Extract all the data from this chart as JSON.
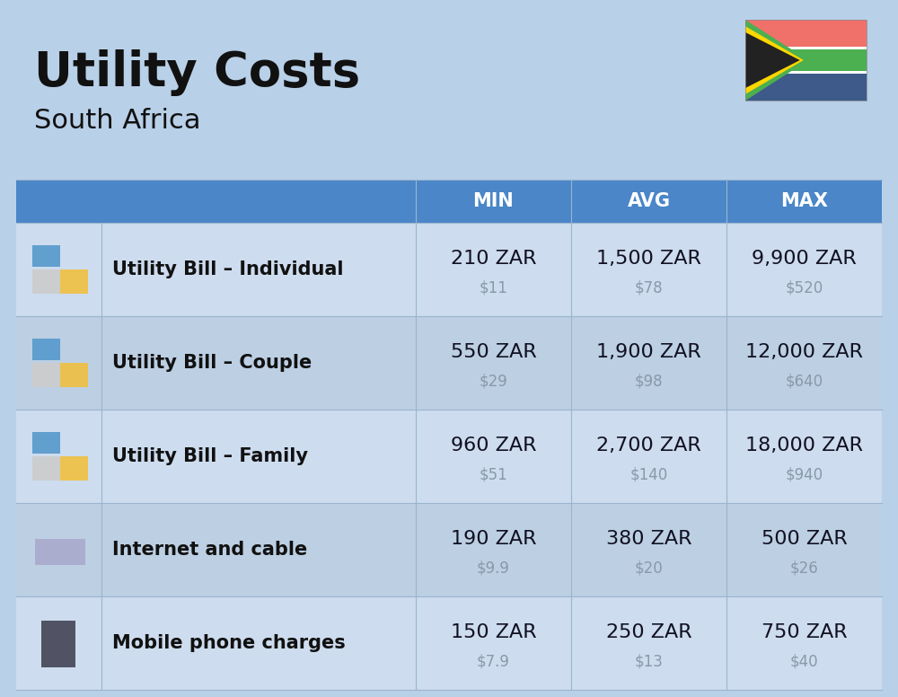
{
  "title": "Utility Costs",
  "subtitle": "South Africa",
  "background_color": "#b8d0e8",
  "header_bg_color": "#4a86c8",
  "row_bg_color_1": "#cddcee",
  "row_bg_color_2": "#bccfe3",
  "col_header_labels": [
    "MIN",
    "AVG",
    "MAX"
  ],
  "rows": [
    {
      "label": "Utility Bill – Individual",
      "min_zar": "210 ZAR",
      "min_usd": "$11",
      "avg_zar": "1,500 ZAR",
      "avg_usd": "$78",
      "max_zar": "9,900 ZAR",
      "max_usd": "$520"
    },
    {
      "label": "Utility Bill – Couple",
      "min_zar": "550 ZAR",
      "min_usd": "$29",
      "avg_zar": "1,900 ZAR",
      "avg_usd": "$98",
      "max_zar": "12,000 ZAR",
      "max_usd": "$640"
    },
    {
      "label": "Utility Bill – Family",
      "min_zar": "960 ZAR",
      "min_usd": "$51",
      "avg_zar": "2,700 ZAR",
      "avg_usd": "$140",
      "max_zar": "18,000 ZAR",
      "max_usd": "$940"
    },
    {
      "label": "Internet and cable",
      "min_zar": "190 ZAR",
      "min_usd": "$9.9",
      "avg_zar": "380 ZAR",
      "avg_usd": "$20",
      "max_zar": "500 ZAR",
      "max_usd": "$26"
    },
    {
      "label": "Mobile phone charges",
      "min_zar": "150 ZAR",
      "min_usd": "$7.9",
      "avg_zar": "250 ZAR",
      "avg_usd": "$13",
      "max_zar": "750 ZAR",
      "max_usd": "$40"
    }
  ],
  "title_fontsize": 38,
  "subtitle_fontsize": 22,
  "header_fontsize": 15,
  "label_fontsize": 15,
  "value_fontsize": 16,
  "usd_fontsize": 12,
  "header_text_color": "#ffffff",
  "usd_color": "#8899aa",
  "cell_text_color": "#111122",
  "label_text_color": "#111111",
  "divider_color": "#9ab5ce",
  "flag_colors": {
    "red": "#F0706A",
    "green": "#4CAF50",
    "blue": "#3D5A8A",
    "black": "#222222",
    "yellow": "#FFD700",
    "white": "#FFFFFF"
  }
}
